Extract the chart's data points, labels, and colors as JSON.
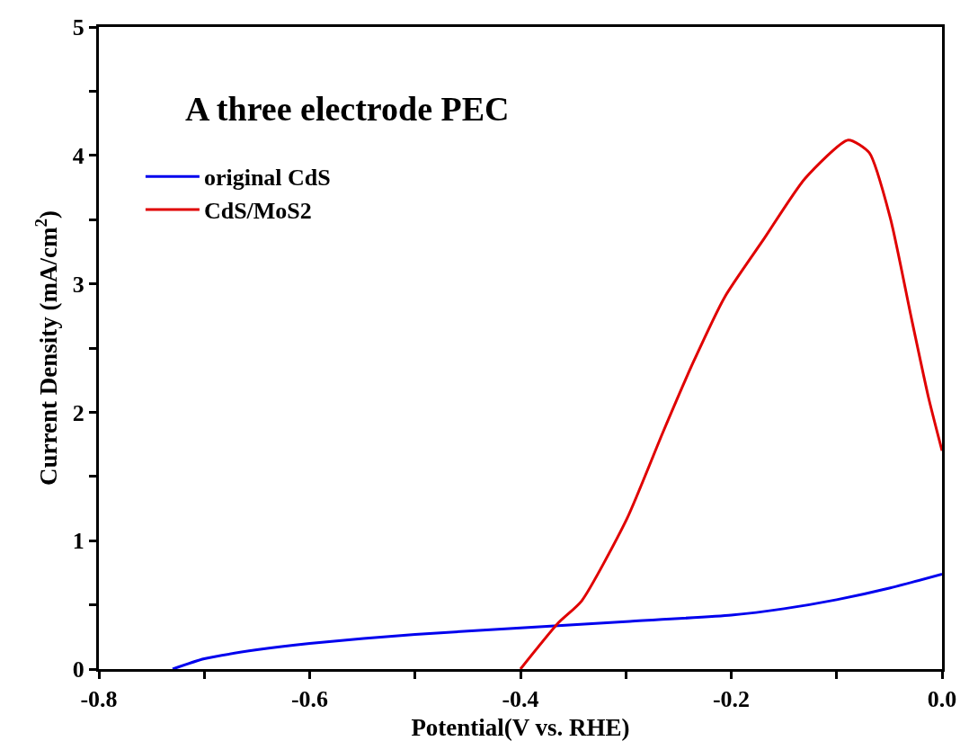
{
  "chart_data": {
    "type": "line",
    "xlabel": "Potential(V vs. RHE)",
    "ylabel": "Current Density (mA/cm$^{2}$)",
    "annotations": [
      "A three electrode PEC"
    ],
    "xlim": [
      -0.8,
      0.0
    ],
    "xticks": [
      {
        "value": -0.8,
        "label": "-0.8"
      },
      {
        "value": -0.7,
        "label": null
      },
      {
        "value": -0.6,
        "label": "-0.6"
      },
      {
        "value": -0.5,
        "label": null
      },
      {
        "value": -0.4,
        "label": "-0.4"
      },
      {
        "value": -0.3,
        "label": null
      },
      {
        "value": -0.2,
        "label": "-0.2"
      },
      {
        "value": -0.1,
        "label": null
      },
      {
        "value": 0.0,
        "label": "0.0"
      }
    ],
    "ylim": [
      0,
      5
    ],
    "yticks": [
      0,
      {
        "value": 0.5,
        "label": null
      },
      1,
      {
        "value": 1.5,
        "label": null
      },
      2,
      {
        "value": 2.5,
        "label": null
      },
      3,
      {
        "value": 3.5,
        "label": null
      },
      4,
      {
        "value": 4.5,
        "label": null
      },
      5
    ],
    "legend": "top left",
    "series": [
      {
        "name": "original CdS",
        "color": "#0000ee",
        "x": [
          -0.73,
          -0.7,
          -0.65,
          -0.6,
          -0.5,
          -0.4,
          -0.3,
          -0.2,
          -0.15,
          -0.1,
          -0.05,
          0.0
        ],
        "values": [
          0,
          0.08,
          0.15,
          0.2,
          0.27,
          0.32,
          0.37,
          0.42,
          0.47,
          0.54,
          0.63,
          0.74
        ]
      },
      {
        "name": "CdS/MoS2",
        "color": "#e00000",
        "x": [
          -0.4,
          -0.364,
          -0.342,
          -0.299,
          -0.265,
          -0.236,
          -0.206,
          -0.169,
          -0.13,
          -0.089,
          -0.069,
          -0.049,
          -0.029,
          -0.013,
          0.0
        ],
        "values": [
          0,
          0.36,
          0.53,
          1.17,
          1.84,
          2.39,
          2.9,
          3.35,
          3.82,
          4.12,
          4.02,
          3.51,
          2.73,
          2.12,
          1.7
        ]
      }
    ]
  }
}
